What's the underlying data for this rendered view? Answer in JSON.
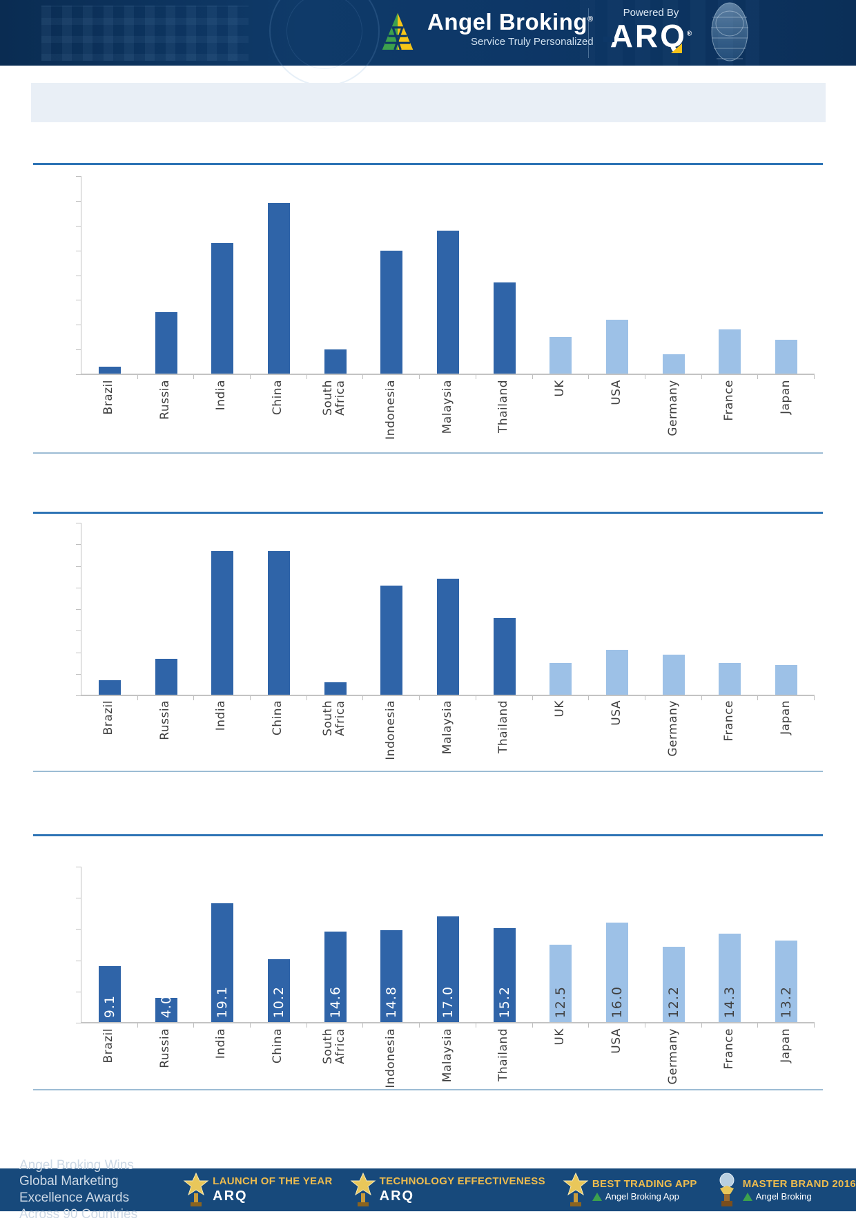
{
  "header": {
    "brand": "Angel Broking",
    "brand_reg": "®",
    "tagline": "Service Truly Personalized",
    "powered_by": "Powered By",
    "arq": "ARQ",
    "arq_reg": "®"
  },
  "title_banner": {
    "text": ""
  },
  "colors": {
    "bar_dark": "#2f64a8",
    "bar_light": "#9dc1e7",
    "rule_thick": "#2e74b5",
    "rule_thin": "#9cbcd4",
    "header_bg": "#0d3767",
    "footer_bg": "#17497b",
    "award_gold": "#eebc4e",
    "accent_yellow": "#f6c21a",
    "accent_green": "#3da14d",
    "axis_gray": "#bfbfbf"
  },
  "chart_data": [
    {
      "type": "bar",
      "title": "",
      "categories": [
        "Brazil",
        "Russia",
        "India",
        "China",
        "South Africa",
        "Indonesia",
        "Malaysia",
        "Thailand",
        "UK",
        "USA",
        "Germany",
        "France",
        "Japan"
      ],
      "values": [
        0.3,
        2.5,
        5.3,
        6.9,
        1.0,
        5.0,
        5.8,
        3.7,
        1.5,
        2.2,
        0.8,
        1.8,
        1.4
      ],
      "xlabel": "",
      "ylabel": "",
      "ylim": [
        0,
        8
      ],
      "ytick_count": 9,
      "grid": false,
      "legend": false,
      "dark_count": 8,
      "value_labels": null
    },
    {
      "type": "bar",
      "title": "",
      "categories": [
        "Brazil",
        "Russia",
        "India",
        "China",
        "South Africa",
        "Indonesia",
        "Malaysia",
        "Thailand",
        "UK",
        "USA",
        "Germany",
        "France",
        "Japan"
      ],
      "values": [
        0.7,
        1.7,
        6.7,
        6.7,
        0.6,
        5.1,
        5.4,
        3.6,
        1.5,
        2.1,
        1.9,
        1.5,
        1.4
      ],
      "xlabel": "",
      "ylabel": "",
      "ylim": [
        0,
        8
      ],
      "ytick_count": 9,
      "grid": false,
      "legend": false,
      "dark_count": 8,
      "value_labels": null
    },
    {
      "type": "bar",
      "title": "",
      "categories": [
        "Brazil",
        "Russia",
        "India",
        "China",
        "South Africa",
        "Indonesia",
        "Malaysia",
        "Thailand",
        "UK",
        "USA",
        "Germany",
        "France",
        "Japan"
      ],
      "values": [
        9.1,
        4.0,
        19.1,
        10.2,
        14.6,
        14.8,
        17.0,
        15.2,
        12.5,
        16.0,
        12.2,
        14.3,
        13.2
      ],
      "value_labels": [
        "9.1",
        "4.0",
        "19.1",
        "10.2",
        "14.6",
        "14.8",
        "17.0",
        "15.2",
        "12.5",
        "16.0",
        "12.2",
        "14.3",
        "13.2"
      ],
      "xlabel": "",
      "ylabel": "",
      "ylim": [
        0,
        25
      ],
      "ytick_count": 6,
      "grid": false,
      "legend": false,
      "dark_count": 8
    }
  ],
  "footer": {
    "left_line1": "Angel Broking Wins Global Marketing",
    "left_line2": "Excellence Awards Across 90 Countries",
    "awards": [
      {
        "title": "LAUNCH OF THE YEAR",
        "subtitle": "ARQ",
        "icon": "trophy-star-icon"
      },
      {
        "title": "TECHNOLOGY EFFECTIVENESS",
        "subtitle": "ARQ",
        "icon": "trophy-star-icon"
      },
      {
        "title": "BEST TRADING APP",
        "subtitle": "Angel Broking App",
        "icon": "trophy-star-icon"
      },
      {
        "title": "MASTER BRAND 2016",
        "subtitle": "Angel Broking",
        "icon": "trophy-globe-icon"
      }
    ]
  }
}
